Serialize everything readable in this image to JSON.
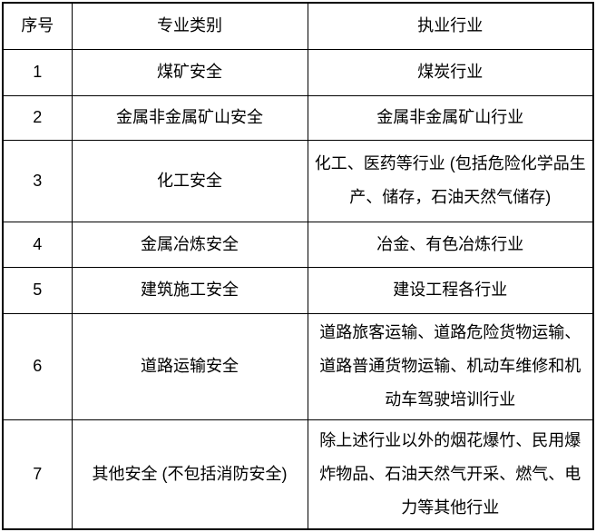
{
  "page": {
    "background_color": "#ffffff",
    "border_color": "#000000",
    "text_color": "#000000"
  },
  "table": {
    "headers": [
      "序号",
      "专业类别",
      "执业行业"
    ],
    "rows": [
      {
        "num": "1",
        "category": "煤矿安全",
        "industry": "煤炭行业"
      },
      {
        "num": "2",
        "category": "金属非金属矿山安全",
        "industry": "金属非金属矿山行业"
      },
      {
        "num": "3",
        "category": "化工安全",
        "industry": "化工、医药等行业 (包括危险化学品生产、储存，石油天然气储存)"
      },
      {
        "num": "4",
        "category": "金属冶炼安全",
        "industry": "冶金、有色冶炼行业"
      },
      {
        "num": "5",
        "category": "建筑施工安全",
        "industry": "建设工程各行业"
      },
      {
        "num": "6",
        "category": "道路运输安全",
        "industry": "道路旅客运输、道路危险货物运输、道路普通货物运输、机动车维修和机动车驾驶培训行业"
      },
      {
        "num": "7",
        "category": "其他安全 (不包括消防安全)",
        "industry": "除上述行业以外的烟花爆竹、民用爆炸物品、石油天然气开采、燃气、电力等其他行业"
      }
    ]
  }
}
